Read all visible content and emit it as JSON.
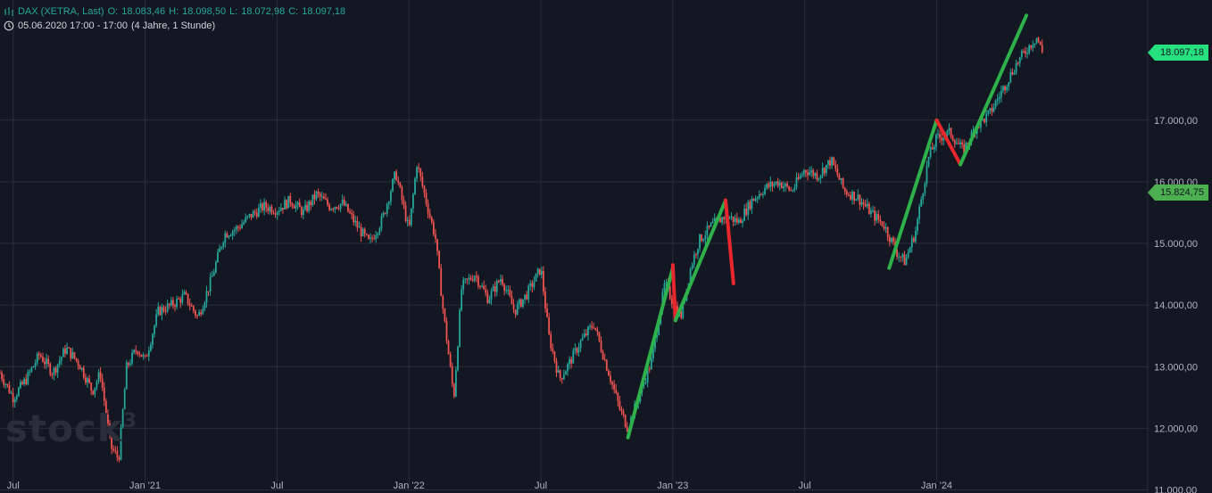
{
  "header": {
    "symbol": "DAX (XETRA, Last)",
    "o_label": "O:",
    "o_value": "18.083,46",
    "h_label": "H:",
    "h_value": "18.098,50",
    "l_label": "L:",
    "l_value": "18.072,98",
    "c_label": "C:",
    "c_value": "18.097,18",
    "period": "05.06.2020 17:00 - 17:00",
    "range": "(4 Jahre, 1 Stunde)"
  },
  "watermark": {
    "text": "stock",
    "sup": "3"
  },
  "price_tags": {
    "last": "18.097,18",
    "reference": "15.824,75"
  },
  "colors": {
    "background": "#131722",
    "up": "#26a69a",
    "down": "#ef5350",
    "impulse_up": "#2eb04a",
    "impulse_down": "#e8262b",
    "grid": "#2a2e39"
  },
  "chart_data": {
    "type": "line",
    "title": "DAX (XETRA, Last)",
    "x_ticks": [
      {
        "label": "Jul",
        "t": 0.0
      },
      {
        "label": "Jan '21",
        "t": 0.5
      },
      {
        "label": "Jul",
        "t": 1.0
      },
      {
        "label": "Jan '22",
        "t": 1.5
      },
      {
        "label": "Jul",
        "t": 2.0
      },
      {
        "label": "Jan '23",
        "t": 2.5
      },
      {
        "label": "Jul",
        "t": 3.0
      },
      {
        "label": "Jan '24",
        "t": 3.5
      }
    ],
    "y_ticks": [
      {
        "label": "11.000,00",
        "v": 11000
      },
      {
        "label": "12.000,00",
        "v": 12000
      },
      {
        "label": "13.000,00",
        "v": 13000
      },
      {
        "label": "14.000,00",
        "v": 14000
      },
      {
        "label": "15.000,00",
        "v": 15000
      },
      {
        "label": "16.000,00",
        "v": 16000
      },
      {
        "label": "17.000,00",
        "v": 17000
      }
    ],
    "ylim": [
      10950,
      18950
    ],
    "xlim": [
      -0.05,
      4.3
    ],
    "grid": true,
    "price_series": [
      [
        -0.05,
        12900
      ],
      [
        0.0,
        12500
      ],
      [
        0.05,
        12800
      ],
      [
        0.1,
        13200
      ],
      [
        0.15,
        12900
      ],
      [
        0.2,
        13300
      ],
      [
        0.25,
        13050
      ],
      [
        0.3,
        12600
      ],
      [
        0.33,
        12900
      ],
      [
        0.37,
        11700
      ],
      [
        0.4,
        11500
      ],
      [
        0.43,
        13000
      ],
      [
        0.47,
        13300
      ],
      [
        0.5,
        13100
      ],
      [
        0.55,
        13900
      ],
      [
        0.6,
        14000
      ],
      [
        0.65,
        14150
      ],
      [
        0.7,
        13800
      ],
      [
        0.75,
        14400
      ],
      [
        0.8,
        15150
      ],
      [
        0.85,
        15250
      ],
      [
        0.9,
        15450
      ],
      [
        0.95,
        15600
      ],
      [
        1.0,
        15550
      ],
      [
        1.05,
        15700
      ],
      [
        1.1,
        15500
      ],
      [
        1.15,
        15800
      ],
      [
        1.2,
        15600
      ],
      [
        1.25,
        15650
      ],
      [
        1.3,
        15300
      ],
      [
        1.35,
        15000
      ],
      [
        1.4,
        15400
      ],
      [
        1.45,
        16150
      ],
      [
        1.5,
        15200
      ],
      [
        1.53,
        16300
      ],
      [
        1.57,
        15600
      ],
      [
        1.6,
        15100
      ],
      [
        1.63,
        13900
      ],
      [
        1.67,
        12500
      ],
      [
        1.7,
        14300
      ],
      [
        1.75,
        14500
      ],
      [
        1.8,
        14100
      ],
      [
        1.85,
        14450
      ],
      [
        1.9,
        13900
      ],
      [
        1.95,
        14200
      ],
      [
        2.0,
        14600
      ],
      [
        2.03,
        13500
      ],
      [
        2.07,
        12800
      ],
      [
        2.1,
        13000
      ],
      [
        2.15,
        13400
      ],
      [
        2.2,
        13700
      ],
      [
        2.25,
        13000
      ],
      [
        2.3,
        12300
      ],
      [
        2.33,
        12000
      ],
      [
        2.37,
        12500
      ],
      [
        2.42,
        13100
      ],
      [
        2.47,
        14350
      ],
      [
        2.5,
        14050
      ],
      [
        2.53,
        13800
      ],
      [
        2.57,
        14650
      ],
      [
        2.6,
        15050
      ],
      [
        2.65,
        15300
      ],
      [
        2.7,
        15450
      ],
      [
        2.75,
        15350
      ],
      [
        2.8,
        15700
      ],
      [
        2.85,
        15900
      ],
      [
        2.9,
        16000
      ],
      [
        2.95,
        15850
      ],
      [
        3.0,
        16200
      ],
      [
        3.05,
        16100
      ],
      [
        3.1,
        16350
      ],
      [
        3.15,
        15850
      ],
      [
        3.2,
        15750
      ],
      [
        3.25,
        15500
      ],
      [
        3.3,
        15300
      ],
      [
        3.35,
        14850
      ],
      [
        3.38,
        14700
      ],
      [
        3.42,
        15200
      ],
      [
        3.47,
        16400
      ],
      [
        3.5,
        16700
      ],
      [
        3.55,
        16800
      ],
      [
        3.6,
        16500
      ],
      [
        3.65,
        16900
      ],
      [
        3.7,
        17100
      ],
      [
        3.75,
        17500
      ],
      [
        3.8,
        17900
      ],
      [
        3.85,
        18200
      ],
      [
        3.88,
        18350
      ],
      [
        3.9,
        18097
      ]
    ],
    "impulse_lines": [
      {
        "direction": "up",
        "points": [
          [
            2.33,
            11850
          ],
          [
            2.5,
            14600
          ]
        ]
      },
      {
        "direction": "down",
        "points": [
          [
            2.5,
            14650
          ],
          [
            2.51,
            13750
          ]
        ]
      },
      {
        "direction": "up",
        "points": [
          [
            2.51,
            13750
          ],
          [
            2.7,
            15700
          ]
        ]
      },
      {
        "direction": "down",
        "points": [
          [
            2.7,
            15700
          ],
          [
            2.73,
            14350
          ]
        ]
      },
      {
        "direction": "up",
        "points": [
          [
            3.32,
            14600
          ],
          [
            3.5,
            17000
          ]
        ]
      },
      {
        "direction": "down",
        "points": [
          [
            3.5,
            17000
          ],
          [
            3.59,
            16280
          ]
        ]
      },
      {
        "direction": "up",
        "points": [
          [
            3.59,
            16280
          ],
          [
            3.84,
            18700
          ]
        ]
      }
    ]
  }
}
